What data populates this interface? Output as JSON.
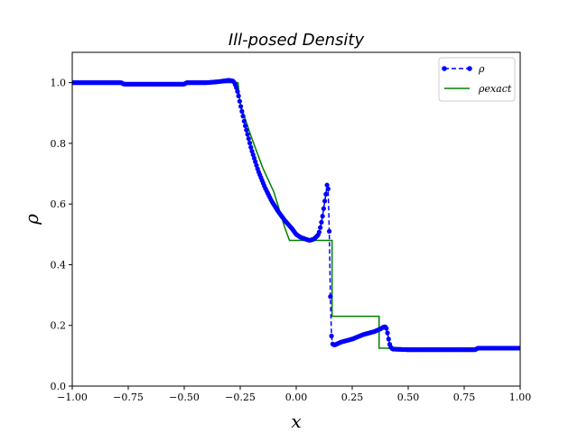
{
  "chart_data": {
    "type": "line",
    "title": "Ill-posed Density",
    "xlabel": "x",
    "ylabel": "ρ",
    "xlim": [
      -1.0,
      1.0
    ],
    "ylim": [
      0.0,
      1.1
    ],
    "xticks": [
      -1.0,
      -0.75,
      -0.5,
      -0.25,
      0.0,
      0.25,
      0.5,
      0.75,
      1.0
    ],
    "xtick_labels": [
      "−1.00",
      "−0.75",
      "−0.50",
      "−0.25",
      "0.00",
      "0.25",
      "0.50",
      "0.75",
      "1.00"
    ],
    "yticks": [
      0.0,
      0.2,
      0.4,
      0.6,
      0.8,
      1.0
    ],
    "ytick_labels": [
      "0.0",
      "0.2",
      "0.4",
      "0.6",
      "0.8",
      "1.0"
    ],
    "grid": false,
    "legend": {
      "placement": "top-right",
      "entries": [
        "ρ",
        "ρexact"
      ]
    },
    "series": [
      {
        "name": "ρ",
        "color": "#0000ff",
        "style": "dashed-with-dots",
        "x": [
          -1.0,
          -0.78,
          -0.77,
          -0.5,
          -0.49,
          -0.4,
          -0.35,
          -0.32,
          -0.3,
          -0.28,
          -0.27,
          -0.26,
          -0.25,
          -0.23,
          -0.2,
          -0.17,
          -0.14,
          -0.11,
          -0.08,
          -0.05,
          -0.02,
          0.0,
          0.02,
          0.04,
          0.06,
          0.08,
          0.1,
          0.11,
          0.12,
          0.125,
          0.13,
          0.135,
          0.14,
          0.145,
          0.15,
          0.155,
          0.16,
          0.17,
          0.2,
          0.25,
          0.3,
          0.35,
          0.38,
          0.39,
          0.4,
          0.405,
          0.41,
          0.415,
          0.42,
          0.43,
          0.5,
          0.6,
          0.7,
          0.8,
          0.81,
          1.0
        ],
        "y": [
          1.0,
          1.0,
          0.995,
          0.995,
          1.0,
          1.0,
          1.003,
          1.006,
          1.008,
          1.005,
          0.99,
          0.965,
          0.93,
          0.865,
          0.78,
          0.71,
          0.655,
          0.61,
          0.575,
          0.545,
          0.52,
          0.5,
          0.49,
          0.485,
          0.48,
          0.485,
          0.5,
          0.53,
          0.57,
          0.6,
          0.62,
          0.645,
          0.68,
          0.62,
          0.4,
          0.19,
          0.14,
          0.135,
          0.145,
          0.155,
          0.17,
          0.18,
          0.19,
          0.195,
          0.195,
          0.185,
          0.165,
          0.145,
          0.13,
          0.122,
          0.12,
          0.12,
          0.12,
          0.12,
          0.125,
          0.125
        ]
      },
      {
        "name": "ρexact",
        "color": "#008000",
        "style": "solid",
        "x": [
          -1.0,
          -0.26,
          -0.25,
          -0.2,
          -0.15,
          -0.1,
          -0.05,
          -0.03,
          0.16,
          0.16,
          0.37,
          0.37,
          1.0
        ],
        "y": [
          1.0,
          1.0,
          0.93,
          0.82,
          0.72,
          0.64,
          0.52,
          0.48,
          0.48,
          0.23,
          0.23,
          0.125,
          0.125
        ]
      }
    ]
  }
}
